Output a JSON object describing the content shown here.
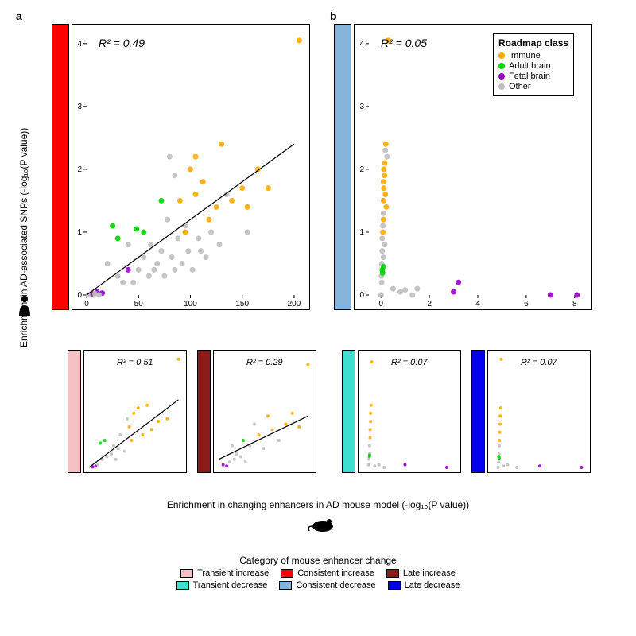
{
  "panel_labels": {
    "a": "a",
    "b": "b"
  },
  "ylabel": "Enrichment in AD-associated SNPs (-log₁₀(P value))",
  "xlabel": "Enrichment in changing enhancers in AD mouse model (-log₁₀(P value))",
  "roadmap_legend": {
    "title": "Roadmap class",
    "items": [
      {
        "label": "Immune",
        "color": "#ffaa00"
      },
      {
        "label": "Adult brain",
        "color": "#00d600"
      },
      {
        "label": "Fetal brain",
        "color": "#9900cc"
      },
      {
        "label": "Other",
        "color": "#bfbfbf"
      }
    ]
  },
  "category_legend": {
    "title": "Category of mouse enhancer change",
    "items": [
      {
        "label": "Transient increase",
        "color": "#f4c2c2"
      },
      {
        "label": "Consistent increase",
        "color": "#ff0000"
      },
      {
        "label": "Late increase",
        "color": "#8b1a1a"
      },
      {
        "label": "Transient decrease",
        "color": "#40e0d0"
      },
      {
        "label": "Consistent decrease",
        "color": "#87b3d8"
      },
      {
        "label": "Late decrease",
        "color": "#0000ee"
      }
    ]
  },
  "human_icon": "👤",
  "mouse_icon": "🐁",
  "main_a": {
    "rsq_label": "R² = 0.49",
    "xlim": [
      0,
      210
    ],
    "ylim": [
      0,
      4.2
    ],
    "xticks": [
      0,
      50,
      100,
      150,
      200
    ],
    "yticks": [
      0,
      1,
      2,
      3,
      4
    ],
    "bar_color": "#ff0000",
    "fit_line": {
      "x1": 0,
      "y1": 0,
      "x2": 200,
      "y2": 2.4,
      "color": "#000000"
    },
    "points": [
      {
        "x": 5,
        "y": 0.02,
        "c": "#9900cc"
      },
      {
        "x": 10,
        "y": 0.05,
        "c": "#9900cc"
      },
      {
        "x": 15,
        "y": 0.03,
        "c": "#9900cc"
      },
      {
        "x": 2,
        "y": 0.0,
        "c": "#bfbfbf"
      },
      {
        "x": 8,
        "y": 0.02,
        "c": "#bfbfbf"
      },
      {
        "x": 12,
        "y": 0.0,
        "c": "#bfbfbf"
      },
      {
        "x": 20,
        "y": 0.5,
        "c": "#bfbfbf"
      },
      {
        "x": 25,
        "y": 1.1,
        "c": "#00d600"
      },
      {
        "x": 30,
        "y": 0.3,
        "c": "#bfbfbf"
      },
      {
        "x": 30,
        "y": 0.9,
        "c": "#00d600"
      },
      {
        "x": 35,
        "y": 0.2,
        "c": "#bfbfbf"
      },
      {
        "x": 40,
        "y": 0.4,
        "c": "#9900cc"
      },
      {
        "x": 40,
        "y": 0.8,
        "c": "#bfbfbf"
      },
      {
        "x": 45,
        "y": 0.2,
        "c": "#bfbfbf"
      },
      {
        "x": 48,
        "y": 1.05,
        "c": "#00d600"
      },
      {
        "x": 50,
        "y": 0.4,
        "c": "#bfbfbf"
      },
      {
        "x": 55,
        "y": 0.6,
        "c": "#bfbfbf"
      },
      {
        "x": 55,
        "y": 1.0,
        "c": "#00d600"
      },
      {
        "x": 60,
        "y": 0.3,
        "c": "#bfbfbf"
      },
      {
        "x": 62,
        "y": 0.8,
        "c": "#bfbfbf"
      },
      {
        "x": 65,
        "y": 0.4,
        "c": "#bfbfbf"
      },
      {
        "x": 68,
        "y": 0.5,
        "c": "#bfbfbf"
      },
      {
        "x": 72,
        "y": 1.5,
        "c": "#00d600"
      },
      {
        "x": 72,
        "y": 0.7,
        "c": "#bfbfbf"
      },
      {
        "x": 75,
        "y": 0.3,
        "c": "#bfbfbf"
      },
      {
        "x": 78,
        "y": 1.2,
        "c": "#bfbfbf"
      },
      {
        "x": 80,
        "y": 2.2,
        "c": "#bfbfbf"
      },
      {
        "x": 82,
        "y": 0.6,
        "c": "#bfbfbf"
      },
      {
        "x": 85,
        "y": 1.9,
        "c": "#bfbfbf"
      },
      {
        "x": 85,
        "y": 0.4,
        "c": "#bfbfbf"
      },
      {
        "x": 88,
        "y": 0.9,
        "c": "#bfbfbf"
      },
      {
        "x": 90,
        "y": 1.5,
        "c": "#ffaa00"
      },
      {
        "x": 92,
        "y": 0.5,
        "c": "#bfbfbf"
      },
      {
        "x": 95,
        "y": 1.1,
        "c": "#bfbfbf"
      },
      {
        "x": 95,
        "y": 1.0,
        "c": "#ffaa00"
      },
      {
        "x": 98,
        "y": 0.7,
        "c": "#bfbfbf"
      },
      {
        "x": 100,
        "y": 2.0,
        "c": "#ffaa00"
      },
      {
        "x": 102,
        "y": 0.4,
        "c": "#bfbfbf"
      },
      {
        "x": 105,
        "y": 2.2,
        "c": "#ffaa00"
      },
      {
        "x": 105,
        "y": 1.6,
        "c": "#ffaa00"
      },
      {
        "x": 108,
        "y": 0.9,
        "c": "#bfbfbf"
      },
      {
        "x": 110,
        "y": 0.7,
        "c": "#bfbfbf"
      },
      {
        "x": 112,
        "y": 1.8,
        "c": "#ffaa00"
      },
      {
        "x": 115,
        "y": 0.6,
        "c": "#bfbfbf"
      },
      {
        "x": 118,
        "y": 1.2,
        "c": "#ffaa00"
      },
      {
        "x": 120,
        "y": 1.0,
        "c": "#bfbfbf"
      },
      {
        "x": 125,
        "y": 1.4,
        "c": "#ffaa00"
      },
      {
        "x": 128,
        "y": 0.8,
        "c": "#bfbfbf"
      },
      {
        "x": 130,
        "y": 2.4,
        "c": "#ffaa00"
      },
      {
        "x": 135,
        "y": 1.6,
        "c": "#bfbfbf"
      },
      {
        "x": 140,
        "y": 1.5,
        "c": "#ffaa00"
      },
      {
        "x": 150,
        "y": 1.7,
        "c": "#ffaa00"
      },
      {
        "x": 155,
        "y": 1.4,
        "c": "#ffaa00"
      },
      {
        "x": 155,
        "y": 1.0,
        "c": "#bfbfbf"
      },
      {
        "x": 165,
        "y": 2.0,
        "c": "#ffaa00"
      },
      {
        "x": 175,
        "y": 1.7,
        "c": "#ffaa00"
      },
      {
        "x": 205,
        "y": 4.05,
        "c": "#ffaa00"
      }
    ]
  },
  "main_b": {
    "rsq_label": "R² = 0.05",
    "xlim": [
      -0.5,
      8.5
    ],
    "ylim": [
      0,
      4.2
    ],
    "xticks": [
      0,
      2,
      4,
      6,
      8
    ],
    "yticks": [
      0,
      1,
      2,
      3,
      4
    ],
    "bar_color": "#87b3d8",
    "points": [
      {
        "x": 0.0,
        "y": 0.0,
        "c": "#bfbfbf"
      },
      {
        "x": 0.02,
        "y": 0.3,
        "c": "#bfbfbf"
      },
      {
        "x": 0.03,
        "y": 0.5,
        "c": "#bfbfbf"
      },
      {
        "x": 0.05,
        "y": 0.7,
        "c": "#bfbfbf"
      },
      {
        "x": 0.05,
        "y": 0.9,
        "c": "#bfbfbf"
      },
      {
        "x": 0.08,
        "y": 1.1,
        "c": "#bfbfbf"
      },
      {
        "x": 0.1,
        "y": 1.3,
        "c": "#bfbfbf"
      },
      {
        "x": 0.1,
        "y": 1.5,
        "c": "#ffaa00"
      },
      {
        "x": 0.12,
        "y": 1.7,
        "c": "#ffaa00"
      },
      {
        "x": 0.15,
        "y": 1.9,
        "c": "#ffaa00"
      },
      {
        "x": 0.15,
        "y": 2.1,
        "c": "#ffaa00"
      },
      {
        "x": 0.18,
        "y": 2.3,
        "c": "#bfbfbf"
      },
      {
        "x": 0.2,
        "y": 2.4,
        "c": "#ffaa00"
      },
      {
        "x": 0.08,
        "y": 1.0,
        "c": "#ffaa00"
      },
      {
        "x": 0.1,
        "y": 1.2,
        "c": "#ffaa00"
      },
      {
        "x": 0.05,
        "y": 0.4,
        "c": "#00d600"
      },
      {
        "x": 0.07,
        "y": 0.35,
        "c": "#00d600"
      },
      {
        "x": 0.1,
        "y": 0.45,
        "c": "#00d600"
      },
      {
        "x": 0.03,
        "y": 0.2,
        "c": "#bfbfbf"
      },
      {
        "x": 0.1,
        "y": 0.6,
        "c": "#bfbfbf"
      },
      {
        "x": 0.15,
        "y": 0.8,
        "c": "#bfbfbf"
      },
      {
        "x": 0.18,
        "y": 1.6,
        "c": "#ffaa00"
      },
      {
        "x": 0.22,
        "y": 1.4,
        "c": "#ffaa00"
      },
      {
        "x": 0.25,
        "y": 2.2,
        "c": "#bfbfbf"
      },
      {
        "x": 0.3,
        "y": 4.05,
        "c": "#ffaa00"
      },
      {
        "x": 0.1,
        "y": 1.8,
        "c": "#ffaa00"
      },
      {
        "x": 0.12,
        "y": 2.0,
        "c": "#ffaa00"
      },
      {
        "x": 0.5,
        "y": 0.1,
        "c": "#bfbfbf"
      },
      {
        "x": 0.8,
        "y": 0.05,
        "c": "#bfbfbf"
      },
      {
        "x": 1.0,
        "y": 0.08,
        "c": "#bfbfbf"
      },
      {
        "x": 1.3,
        "y": 0.0,
        "c": "#bfbfbf"
      },
      {
        "x": 1.5,
        "y": 0.1,
        "c": "#bfbfbf"
      },
      {
        "x": 3.0,
        "y": 0.05,
        "c": "#9900cc"
      },
      {
        "x": 3.2,
        "y": 0.2,
        "c": "#9900cc"
      },
      {
        "x": 7.0,
        "y": 0.0,
        "c": "#9900cc"
      },
      {
        "x": 8.1,
        "y": 0.0,
        "c": "#9900cc"
      }
    ]
  },
  "small_a1": {
    "rsq_label": "R² = 0.51",
    "bar_color": "#f4c2c2",
    "xlim": [
      0,
      210
    ],
    "ylim": [
      0,
      4.2
    ],
    "fit_line": {
      "x1": 0,
      "y1": 0,
      "x2": 200,
      "y2": 2.5,
      "color": "#000000"
    },
    "points": [
      {
        "x": 8,
        "y": 0.02,
        "c": "#9900cc"
      },
      {
        "x": 15,
        "y": 0.05,
        "c": "#9900cc"
      },
      {
        "x": 20,
        "y": 0.1,
        "c": "#bfbfbf"
      },
      {
        "x": 25,
        "y": 0.9,
        "c": "#00d600"
      },
      {
        "x": 30,
        "y": 0.3,
        "c": "#bfbfbf"
      },
      {
        "x": 35,
        "y": 1.0,
        "c": "#00d600"
      },
      {
        "x": 40,
        "y": 0.4,
        "c": "#bfbfbf"
      },
      {
        "x": 50,
        "y": 0.5,
        "c": "#bfbfbf"
      },
      {
        "x": 55,
        "y": 0.8,
        "c": "#bfbfbf"
      },
      {
        "x": 60,
        "y": 0.3,
        "c": "#bfbfbf"
      },
      {
        "x": 65,
        "y": 0.7,
        "c": "#bfbfbf"
      },
      {
        "x": 70,
        "y": 1.2,
        "c": "#bfbfbf"
      },
      {
        "x": 80,
        "y": 0.6,
        "c": "#bfbfbf"
      },
      {
        "x": 85,
        "y": 1.8,
        "c": "#bfbfbf"
      },
      {
        "x": 90,
        "y": 1.5,
        "c": "#ffaa00"
      },
      {
        "x": 95,
        "y": 1.0,
        "c": "#ffaa00"
      },
      {
        "x": 100,
        "y": 2.0,
        "c": "#ffaa00"
      },
      {
        "x": 110,
        "y": 2.2,
        "c": "#ffaa00"
      },
      {
        "x": 120,
        "y": 1.2,
        "c": "#ffaa00"
      },
      {
        "x": 130,
        "y": 2.3,
        "c": "#ffaa00"
      },
      {
        "x": 140,
        "y": 1.4,
        "c": "#ffaa00"
      },
      {
        "x": 155,
        "y": 1.7,
        "c": "#ffaa00"
      },
      {
        "x": 175,
        "y": 1.8,
        "c": "#ffaa00"
      },
      {
        "x": 200,
        "y": 4.0,
        "c": "#ffaa00"
      }
    ]
  },
  "small_a2": {
    "rsq_label": "R² = 0.29",
    "bar_color": "#8b1a1a",
    "xlim": [
      0,
      210
    ],
    "ylim": [
      0,
      4.2
    ],
    "fit_line": {
      "x1": 0,
      "y1": 0.3,
      "x2": 200,
      "y2": 1.9,
      "color": "#000000"
    },
    "points": [
      {
        "x": 10,
        "y": 0.1,
        "c": "#9900cc"
      },
      {
        "x": 18,
        "y": 0.05,
        "c": "#9900cc"
      },
      {
        "x": 25,
        "y": 0.2,
        "c": "#bfbfbf"
      },
      {
        "x": 30,
        "y": 0.8,
        "c": "#bfbfbf"
      },
      {
        "x": 35,
        "y": 0.3,
        "c": "#bfbfbf"
      },
      {
        "x": 40,
        "y": 0.5,
        "c": "#bfbfbf"
      },
      {
        "x": 50,
        "y": 0.4,
        "c": "#bfbfbf"
      },
      {
        "x": 55,
        "y": 1.0,
        "c": "#00d600"
      },
      {
        "x": 60,
        "y": 0.2,
        "c": "#bfbfbf"
      },
      {
        "x": 70,
        "y": 0.8,
        "c": "#bfbfbf"
      },
      {
        "x": 80,
        "y": 1.6,
        "c": "#bfbfbf"
      },
      {
        "x": 90,
        "y": 1.2,
        "c": "#ffaa00"
      },
      {
        "x": 100,
        "y": 0.7,
        "c": "#bfbfbf"
      },
      {
        "x": 110,
        "y": 1.9,
        "c": "#ffaa00"
      },
      {
        "x": 120,
        "y": 1.4,
        "c": "#ffaa00"
      },
      {
        "x": 135,
        "y": 1.0,
        "c": "#bfbfbf"
      },
      {
        "x": 150,
        "y": 1.6,
        "c": "#ffaa00"
      },
      {
        "x": 165,
        "y": 2.0,
        "c": "#ffaa00"
      },
      {
        "x": 180,
        "y": 1.5,
        "c": "#ffaa00"
      },
      {
        "x": 200,
        "y": 3.8,
        "c": "#ffaa00"
      }
    ]
  },
  "small_b1": {
    "rsq_label": "R² = 0.07",
    "bar_color": "#40e0d0",
    "xlim": [
      -0.5,
      8.5
    ],
    "ylim": [
      0,
      4.2
    ],
    "points": [
      {
        "x": 0.0,
        "y": 0.1,
        "c": "#bfbfbf"
      },
      {
        "x": 0.05,
        "y": 0.3,
        "c": "#bfbfbf"
      },
      {
        "x": 0.1,
        "y": 0.5,
        "c": "#bfbfbf"
      },
      {
        "x": 0.1,
        "y": 0.8,
        "c": "#bfbfbf"
      },
      {
        "x": 0.15,
        "y": 1.1,
        "c": "#ffaa00"
      },
      {
        "x": 0.15,
        "y": 1.4,
        "c": "#ffaa00"
      },
      {
        "x": 0.2,
        "y": 1.7,
        "c": "#ffaa00"
      },
      {
        "x": 0.2,
        "y": 2.0,
        "c": "#ffaa00"
      },
      {
        "x": 0.25,
        "y": 2.3,
        "c": "#ffaa00"
      },
      {
        "x": 0.3,
        "y": 3.9,
        "c": "#ffaa00"
      },
      {
        "x": 0.08,
        "y": 0.4,
        "c": "#00d600"
      },
      {
        "x": 0.1,
        "y": 0.45,
        "c": "#00d600"
      },
      {
        "x": 0.6,
        "y": 0.05,
        "c": "#bfbfbf"
      },
      {
        "x": 1.0,
        "y": 0.1,
        "c": "#bfbfbf"
      },
      {
        "x": 1.5,
        "y": 0.0,
        "c": "#bfbfbf"
      },
      {
        "x": 3.5,
        "y": 0.1,
        "c": "#9900cc"
      },
      {
        "x": 7.5,
        "y": 0.0,
        "c": "#9900cc"
      }
    ]
  },
  "small_b2": {
    "rsq_label": "R² = 0.07",
    "bar_color": "#0000ee",
    "xlim": [
      -0.5,
      8.5
    ],
    "ylim": [
      0,
      4.2
    ],
    "points": [
      {
        "x": 0.0,
        "y": 0.0,
        "c": "#bfbfbf"
      },
      {
        "x": 0.05,
        "y": 0.2,
        "c": "#bfbfbf"
      },
      {
        "x": 0.08,
        "y": 0.5,
        "c": "#bfbfbf"
      },
      {
        "x": 0.1,
        "y": 0.8,
        "c": "#bfbfbf"
      },
      {
        "x": 0.12,
        "y": 1.0,
        "c": "#ffaa00"
      },
      {
        "x": 0.15,
        "y": 1.3,
        "c": "#ffaa00"
      },
      {
        "x": 0.18,
        "y": 1.6,
        "c": "#ffaa00"
      },
      {
        "x": 0.2,
        "y": 1.9,
        "c": "#ffaa00"
      },
      {
        "x": 0.25,
        "y": 2.2,
        "c": "#ffaa00"
      },
      {
        "x": 0.3,
        "y": 4.0,
        "c": "#ffaa00"
      },
      {
        "x": 0.06,
        "y": 0.4,
        "c": "#00d600"
      },
      {
        "x": 0.1,
        "y": 0.35,
        "c": "#00d600"
      },
      {
        "x": 0.5,
        "y": 0.05,
        "c": "#bfbfbf"
      },
      {
        "x": 0.9,
        "y": 0.1,
        "c": "#bfbfbf"
      },
      {
        "x": 1.8,
        "y": 0.0,
        "c": "#bfbfbf"
      },
      {
        "x": 4.0,
        "y": 0.05,
        "c": "#9900cc"
      },
      {
        "x": 8.0,
        "y": 0.0,
        "c": "#9900cc"
      }
    ]
  }
}
